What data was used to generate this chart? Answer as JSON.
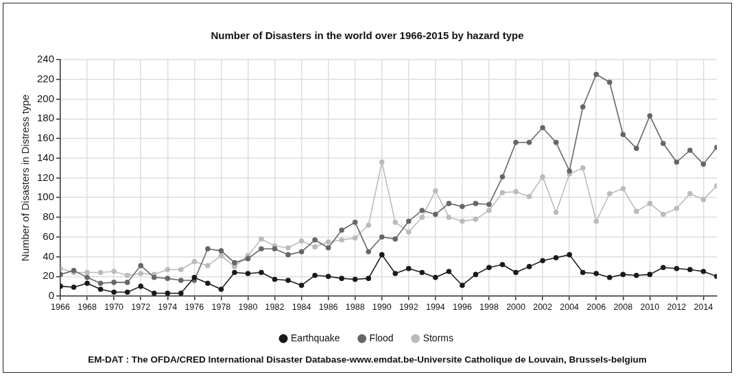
{
  "chart_data": {
    "type": "line",
    "title": "Number of Disasters in the world over 1966-2015 by hazard type",
    "ylabel": "Number of Disasters in Distress type",
    "x": [
      1966,
      1967,
      1968,
      1969,
      1970,
      1971,
      1972,
      1973,
      1974,
      1975,
      1976,
      1977,
      1978,
      1979,
      1980,
      1981,
      1982,
      1983,
      1984,
      1985,
      1986,
      1987,
      1988,
      1989,
      1990,
      1991,
      1992,
      1993,
      1994,
      1995,
      1996,
      1997,
      1998,
      1999,
      2000,
      2001,
      2002,
      2003,
      2004,
      2005,
      2006,
      2007,
      2008,
      2009,
      2010,
      2011,
      2012,
      2013,
      2014,
      2015
    ],
    "series": [
      {
        "name": "Earthquake",
        "color": "#1a1a1a",
        "values": [
          10,
          9,
          13,
          7,
          4,
          4,
          10,
          3,
          3,
          3,
          19,
          13,
          7,
          24,
          23,
          24,
          17,
          16,
          11,
          21,
          20,
          18,
          17,
          18,
          42,
          23,
          28,
          24,
          19,
          25,
          11,
          22,
          29,
          32,
          24,
          30,
          36,
          39,
          42,
          24,
          23,
          19,
          22,
          21,
          22,
          29,
          28,
          27,
          25,
          20
        ]
      },
      {
        "name": "Flood",
        "color": "#666666",
        "values": [
          22,
          26,
          19,
          13,
          14,
          14,
          31,
          19,
          18,
          16,
          16,
          48,
          46,
          34,
          38,
          48,
          48,
          42,
          45,
          57,
          49,
          67,
          75,
          45,
          60,
          58,
          76,
          87,
          83,
          94,
          91,
          94,
          93,
          121,
          156,
          156,
          171,
          156,
          127,
          192,
          225,
          217,
          164,
          150,
          183,
          155,
          136,
          148,
          134,
          151
        ]
      },
      {
        "name": "Storms",
        "color": "#bbbbbb",
        "values": [
          28,
          24,
          24,
          24,
          25,
          21,
          23,
          22,
          27,
          27,
          35,
          31,
          41,
          30,
          41,
          58,
          51,
          49,
          56,
          50,
          55,
          57,
          59,
          72,
          136,
          75,
          65,
          80,
          107,
          80,
          76,
          78,
          87,
          105,
          106,
          101,
          121,
          85,
          124,
          130,
          76,
          104,
          109,
          86,
          94,
          83,
          89,
          104,
          98,
          112
        ]
      }
    ],
    "xlim": [
      1966,
      2015
    ],
    "xticks": [
      1966,
      1968,
      1970,
      1972,
      1974,
      1976,
      1978,
      1980,
      1982,
      1984,
      1986,
      1988,
      1990,
      1992,
      1994,
      1996,
      1998,
      2000,
      2002,
      2004,
      2006,
      2008,
      2010,
      2012,
      2014
    ],
    "ylim": [
      0,
      240
    ],
    "yticks": [
      0,
      20,
      40,
      60,
      80,
      100,
      120,
      140,
      160,
      180,
      200,
      220,
      240
    ],
    "grid": true,
    "legend": "bottom",
    "marker": "circle",
    "line_style": "solid",
    "annotations": [
      "EM-DAT : The OFDA/CRED International Disaster Database-www.emdat.be-Universite Catholique de Louvain, Brussels-belgium"
    ]
  }
}
